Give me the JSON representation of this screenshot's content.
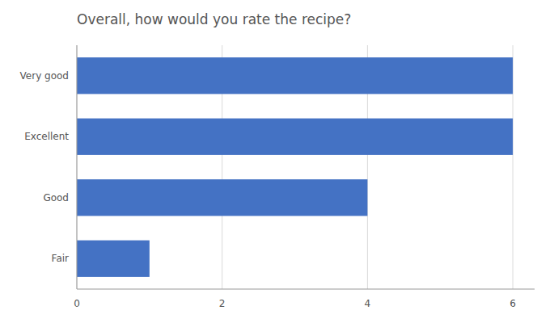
{
  "chart_data": {
    "type": "bar",
    "orientation": "horizontal",
    "title": "Overall, how would you rate the recipe?",
    "categories": [
      "Very good",
      "Excellent",
      "Good",
      "Fair"
    ],
    "values": [
      6,
      6,
      4,
      1
    ],
    "color": "#4472C4",
    "xlim": [
      0,
      6.3
    ],
    "xticks": [
      0,
      2,
      4,
      6
    ],
    "grid": true
  }
}
